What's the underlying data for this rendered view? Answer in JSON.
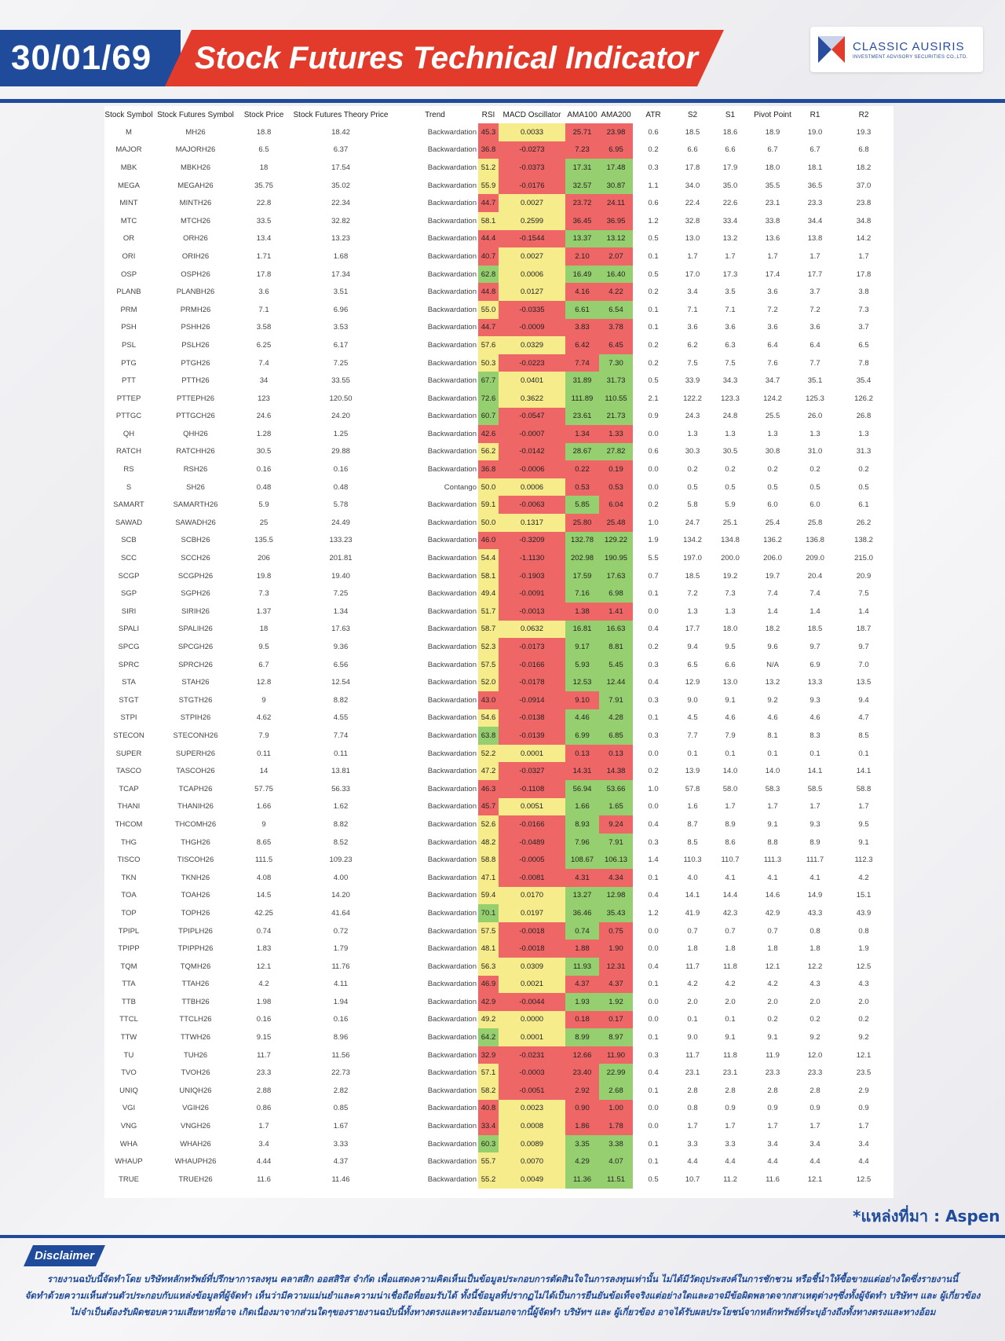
{
  "header": {
    "date": "30/01/69",
    "title": "Stock Futures Technical Indicator",
    "logo_name": "CLASSIC AUSIRIS",
    "logo_sub": "INVESTMENT ADVISORY SECURITIES CO.,LTD."
  },
  "columns": [
    "Stock Symbol",
    "Stock Futures Symbol",
    "Stock Price",
    "Stock Futures Theory Price",
    "Trend",
    "RSI",
    "MACD Oscillator",
    "AMA100",
    "AMA200",
    "ATR",
    "S2",
    "S1",
    "Pivot Point",
    "R1",
    "R2"
  ],
  "colors": {
    "red": "#ee6666",
    "yellow": "#f7ec8c",
    "green": "#96cf6f",
    "orange": "#f7b26a",
    "brand_blue": "#1f4b9a",
    "brand_red": "#e23b2c"
  },
  "rows": [
    [
      "M",
      "MH26",
      "18.8",
      "18.42",
      "Backwardation",
      "45.3",
      "0.0033",
      "25.71",
      "23.98",
      "0.6",
      "18.5",
      "18.6",
      "18.9",
      "19.0",
      "19.3"
    ],
    [
      "MAJOR",
      "MAJORH26",
      "6.5",
      "6.37",
      "Backwardation",
      "36.8",
      "-0.0273",
      "7.23",
      "6.95",
      "0.2",
      "6.6",
      "6.6",
      "6.7",
      "6.7",
      "6.8"
    ],
    [
      "MBK",
      "MBKH26",
      "18",
      "17.54",
      "Backwardation",
      "51.2",
      "-0.0373",
      "17.31",
      "17.48",
      "0.3",
      "17.8",
      "17.9",
      "18.0",
      "18.1",
      "18.2"
    ],
    [
      "MEGA",
      "MEGAH26",
      "35.75",
      "35.02",
      "Backwardation",
      "55.9",
      "-0.0176",
      "32.57",
      "30.87",
      "1.1",
      "34.0",
      "35.0",
      "35.5",
      "36.5",
      "37.0"
    ],
    [
      "MINT",
      "MINTH26",
      "22.8",
      "22.34",
      "Backwardation",
      "44.7",
      "0.0027",
      "23.72",
      "24.11",
      "0.6",
      "22.4",
      "22.6",
      "23.1",
      "23.3",
      "23.8"
    ],
    [
      "MTC",
      "MTCH26",
      "33.5",
      "32.82",
      "Backwardation",
      "58.1",
      "0.2599",
      "36.45",
      "36.95",
      "1.2",
      "32.8",
      "33.4",
      "33.8",
      "34.4",
      "34.8"
    ],
    [
      "OR",
      "ORH26",
      "13.4",
      "13.23",
      "Backwardation",
      "44.4",
      "-0.1544",
      "13.37",
      "13.12",
      "0.5",
      "13.0",
      "13.2",
      "13.6",
      "13.8",
      "14.2"
    ],
    [
      "ORI",
      "ORIH26",
      "1.71",
      "1.68",
      "Backwardation",
      "40.7",
      "0.0027",
      "2.10",
      "2.07",
      "0.1",
      "1.7",
      "1.7",
      "1.7",
      "1.7",
      "1.7"
    ],
    [
      "OSP",
      "OSPH26",
      "17.8",
      "17.34",
      "Backwardation",
      "62.8",
      "0.0006",
      "16.49",
      "16.40",
      "0.5",
      "17.0",
      "17.3",
      "17.4",
      "17.7",
      "17.8"
    ],
    [
      "PLANB",
      "PLANBH26",
      "3.6",
      "3.51",
      "Backwardation",
      "44.8",
      "0.0127",
      "4.16",
      "4.22",
      "0.2",
      "3.4",
      "3.5",
      "3.6",
      "3.7",
      "3.8"
    ],
    [
      "PRM",
      "PRMH26",
      "7.1",
      "6.96",
      "Backwardation",
      "55.0",
      "-0.0335",
      "6.61",
      "6.54",
      "0.1",
      "7.1",
      "7.1",
      "7.2",
      "7.2",
      "7.3"
    ],
    [
      "PSH",
      "PSHH26",
      "3.58",
      "3.53",
      "Backwardation",
      "44.7",
      "-0.0009",
      "3.83",
      "3.78",
      "0.1",
      "3.6",
      "3.6",
      "3.6",
      "3.6",
      "3.7"
    ],
    [
      "PSL",
      "PSLH26",
      "6.25",
      "6.17",
      "Backwardation",
      "57.6",
      "0.0329",
      "6.42",
      "6.45",
      "0.2",
      "6.2",
      "6.3",
      "6.4",
      "6.4",
      "6.5"
    ],
    [
      "PTG",
      "PTGH26",
      "7.4",
      "7.25",
      "Backwardation",
      "50.3",
      "-0.0223",
      "7.74",
      "7.30",
      "0.2",
      "7.5",
      "7.5",
      "7.6",
      "7.7",
      "7.8"
    ],
    [
      "PTT",
      "PTTH26",
      "34",
      "33.55",
      "Backwardation",
      "67.7",
      "0.0401",
      "31.89",
      "31.73",
      "0.5",
      "33.9",
      "34.3",
      "34.7",
      "35.1",
      "35.4"
    ],
    [
      "PTTEP",
      "PTTEPH26",
      "123",
      "120.50",
      "Backwardation",
      "72.6",
      "0.3622",
      "111.89",
      "110.55",
      "2.1",
      "122.2",
      "123.3",
      "124.2",
      "125.3",
      "126.2"
    ],
    [
      "PTTGC",
      "PTTGCH26",
      "24.6",
      "24.20",
      "Backwardation",
      "60.7",
      "-0.0547",
      "23.61",
      "21.73",
      "0.9",
      "24.3",
      "24.8",
      "25.5",
      "26.0",
      "26.8"
    ],
    [
      "QH",
      "QHH26",
      "1.28",
      "1.25",
      "Backwardation",
      "42.6",
      "-0.0007",
      "1.34",
      "1.33",
      "0.0",
      "1.3",
      "1.3",
      "1.3",
      "1.3",
      "1.3"
    ],
    [
      "RATCH",
      "RATCHH26",
      "30.5",
      "29.88",
      "Backwardation",
      "56.2",
      "-0.0142",
      "28.67",
      "27.82",
      "0.6",
      "30.3",
      "30.5",
      "30.8",
      "31.0",
      "31.3"
    ],
    [
      "RS",
      "RSH26",
      "0.16",
      "0.16",
      "Backwardation",
      "36.8",
      "-0.0006",
      "0.22",
      "0.19",
      "0.0",
      "0.2",
      "0.2",
      "0.2",
      "0.2",
      "0.2"
    ],
    [
      "S",
      "SH26",
      "0.48",
      "0.48",
      "Contango",
      "50.0",
      "0.0006",
      "0.53",
      "0.53",
      "0.0",
      "0.5",
      "0.5",
      "0.5",
      "0.5",
      "0.5"
    ],
    [
      "SAMART",
      "SAMARTH26",
      "5.9",
      "5.78",
      "Backwardation",
      "59.1",
      "-0.0063",
      "5.85",
      "6.04",
      "0.2",
      "5.8",
      "5.9",
      "6.0",
      "6.0",
      "6.1"
    ],
    [
      "SAWAD",
      "SAWADH26",
      "25",
      "24.49",
      "Backwardation",
      "50.0",
      "0.1317",
      "25.80",
      "25.48",
      "1.0",
      "24.7",
      "25.1",
      "25.4",
      "25.8",
      "26.2"
    ],
    [
      "SCB",
      "SCBH26",
      "135.5",
      "133.23",
      "Backwardation",
      "46.0",
      "-0.3209",
      "132.78",
      "129.22",
      "1.9",
      "134.2",
      "134.8",
      "136.2",
      "136.8",
      "138.2"
    ],
    [
      "SCC",
      "SCCH26",
      "206",
      "201.81",
      "Backwardation",
      "54.4",
      "-1.1130",
      "202.98",
      "190.95",
      "5.5",
      "197.0",
      "200.0",
      "206.0",
      "209.0",
      "215.0"
    ],
    [
      "SCGP",
      "SCGPH26",
      "19.8",
      "19.40",
      "Backwardation",
      "58.1",
      "-0.1903",
      "17.59",
      "17.63",
      "0.7",
      "18.5",
      "19.2",
      "19.7",
      "20.4",
      "20.9"
    ],
    [
      "SGP",
      "SGPH26",
      "7.3",
      "7.25",
      "Backwardation",
      "49.4",
      "-0.0091",
      "7.16",
      "6.98",
      "0.1",
      "7.2",
      "7.3",
      "7.4",
      "7.4",
      "7.5"
    ],
    [
      "SIRI",
      "SIRIH26",
      "1.37",
      "1.34",
      "Backwardation",
      "51.7",
      "-0.0013",
      "1.38",
      "1.41",
      "0.0",
      "1.3",
      "1.3",
      "1.4",
      "1.4",
      "1.4"
    ],
    [
      "SPALI",
      "SPALIH26",
      "18",
      "17.63",
      "Backwardation",
      "58.7",
      "0.0632",
      "16.81",
      "16.63",
      "0.4",
      "17.7",
      "18.0",
      "18.2",
      "18.5",
      "18.7"
    ],
    [
      "SPCG",
      "SPCGH26",
      "9.5",
      "9.36",
      "Backwardation",
      "52.3",
      "-0.0173",
      "9.17",
      "8.81",
      "0.2",
      "9.4",
      "9.5",
      "9.6",
      "9.7",
      "9.7"
    ],
    [
      "SPRC",
      "SPRCH26",
      "6.7",
      "6.56",
      "Backwardation",
      "57.5",
      "-0.0166",
      "5.93",
      "5.45",
      "0.3",
      "6.5",
      "6.6",
      "N/A",
      "6.9",
      "7.0"
    ],
    [
      "STA",
      "STAH26",
      "12.8",
      "12.54",
      "Backwardation",
      "52.0",
      "-0.0178",
      "12.53",
      "12.44",
      "0.4",
      "12.9",
      "13.0",
      "13.2",
      "13.3",
      "13.5"
    ],
    [
      "STGT",
      "STGTH26",
      "9",
      "8.82",
      "Backwardation",
      "43.0",
      "-0.0914",
      "9.10",
      "7.91",
      "0.3",
      "9.0",
      "9.1",
      "9.2",
      "9.3",
      "9.4"
    ],
    [
      "STPI",
      "STPIH26",
      "4.62",
      "4.55",
      "Backwardation",
      "54.6",
      "-0.0138",
      "4.46",
      "4.28",
      "0.1",
      "4.5",
      "4.6",
      "4.6",
      "4.6",
      "4.7"
    ],
    [
      "STECON",
      "STECONH26",
      "7.9",
      "7.74",
      "Backwardation",
      "63.8",
      "-0.0139",
      "6.99",
      "6.85",
      "0.3",
      "7.7",
      "7.9",
      "8.1",
      "8.3",
      "8.5"
    ],
    [
      "SUPER",
      "SUPERH26",
      "0.11",
      "0.11",
      "Backwardation",
      "52.2",
      "0.0001",
      "0.13",
      "0.13",
      "0.0",
      "0.1",
      "0.1",
      "0.1",
      "0.1",
      "0.1"
    ],
    [
      "TASCO",
      "TASCOH26",
      "14",
      "13.81",
      "Backwardation",
      "47.2",
      "-0.0327",
      "14.31",
      "14.38",
      "0.2",
      "13.9",
      "14.0",
      "14.0",
      "14.1",
      "14.1"
    ],
    [
      "TCAP",
      "TCAPH26",
      "57.75",
      "56.33",
      "Backwardation",
      "46.3",
      "-0.1108",
      "56.94",
      "53.66",
      "1.0",
      "57.8",
      "58.0",
      "58.3",
      "58.5",
      "58.8"
    ],
    [
      "THANI",
      "THANIH26",
      "1.66",
      "1.62",
      "Backwardation",
      "45.7",
      "0.0051",
      "1.66",
      "1.65",
      "0.0",
      "1.6",
      "1.7",
      "1.7",
      "1.7",
      "1.7"
    ],
    [
      "THCOM",
      "THCOMH26",
      "9",
      "8.82",
      "Backwardation",
      "52.6",
      "-0.0166",
      "8.93",
      "9.24",
      "0.4",
      "8.7",
      "8.9",
      "9.1",
      "9.3",
      "9.5"
    ],
    [
      "THG",
      "THGH26",
      "8.65",
      "8.52",
      "Backwardation",
      "48.2",
      "-0.0489",
      "7.96",
      "7.91",
      "0.3",
      "8.5",
      "8.6",
      "8.8",
      "8.9",
      "9.1"
    ],
    [
      "TISCO",
      "TISCOH26",
      "111.5",
      "109.23",
      "Backwardation",
      "58.8",
      "-0.0005",
      "108.67",
      "106.13",
      "1.4",
      "110.3",
      "110.7",
      "111.3",
      "111.7",
      "112.3"
    ],
    [
      "TKN",
      "TKNH26",
      "4.08",
      "4.00",
      "Backwardation",
      "47.1",
      "-0.0081",
      "4.31",
      "4.34",
      "0.1",
      "4.0",
      "4.1",
      "4.1",
      "4.1",
      "4.2"
    ],
    [
      "TOA",
      "TOAH26",
      "14.5",
      "14.20",
      "Backwardation",
      "59.4",
      "0.0170",
      "13.27",
      "12.98",
      "0.4",
      "14.1",
      "14.4",
      "14.6",
      "14.9",
      "15.1"
    ],
    [
      "TOP",
      "TOPH26",
      "42.25",
      "41.64",
      "Backwardation",
      "70.1",
      "0.0197",
      "36.46",
      "35.43",
      "1.2",
      "41.9",
      "42.3",
      "42.9",
      "43.3",
      "43.9"
    ],
    [
      "TPIPL",
      "TPIPLH26",
      "0.74",
      "0.72",
      "Backwardation",
      "57.5",
      "-0.0018",
      "0.74",
      "0.75",
      "0.0",
      "0.7",
      "0.7",
      "0.7",
      "0.8",
      "0.8"
    ],
    [
      "TPIPP",
      "TPIPPH26",
      "1.83",
      "1.79",
      "Backwardation",
      "48.1",
      "-0.0018",
      "1.88",
      "1.90",
      "0.0",
      "1.8",
      "1.8",
      "1.8",
      "1.8",
      "1.9"
    ],
    [
      "TQM",
      "TQMH26",
      "12.1",
      "11.76",
      "Backwardation",
      "56.3",
      "0.0309",
      "11.93",
      "12.31",
      "0.4",
      "11.7",
      "11.8",
      "12.1",
      "12.2",
      "12.5"
    ],
    [
      "TTA",
      "TTAH26",
      "4.2",
      "4.11",
      "Backwardation",
      "46.9",
      "0.0021",
      "4.37",
      "4.37",
      "0.1",
      "4.2",
      "4.2",
      "4.2",
      "4.3",
      "4.3"
    ],
    [
      "TTB",
      "TTBH26",
      "1.98",
      "1.94",
      "Backwardation",
      "42.9",
      "-0.0044",
      "1.93",
      "1.92",
      "0.0",
      "2.0",
      "2.0",
      "2.0",
      "2.0",
      "2.0"
    ],
    [
      "TTCL",
      "TTCLH26",
      "0.16",
      "0.16",
      "Backwardation",
      "49.2",
      "0.0000",
      "0.18",
      "0.17",
      "0.0",
      "0.1",
      "0.1",
      "0.2",
      "0.2",
      "0.2"
    ],
    [
      "TTW",
      "TTWH26",
      "9.15",
      "8.96",
      "Backwardation",
      "64.2",
      "0.0001",
      "8.99",
      "8.97",
      "0.1",
      "9.0",
      "9.1",
      "9.1",
      "9.2",
      "9.2"
    ],
    [
      "TU",
      "TUH26",
      "11.7",
      "11.56",
      "Backwardation",
      "32.9",
      "-0.0231",
      "12.66",
      "11.90",
      "0.3",
      "11.7",
      "11.8",
      "11.9",
      "12.0",
      "12.1"
    ],
    [
      "TVO",
      "TVOH26",
      "23.3",
      "22.73",
      "Backwardation",
      "57.1",
      "-0.0003",
      "23.40",
      "22.99",
      "0.4",
      "23.1",
      "23.1",
      "23.3",
      "23.3",
      "23.5"
    ],
    [
      "UNIQ",
      "UNIQH26",
      "2.88",
      "2.82",
      "Backwardation",
      "58.2",
      "-0.0051",
      "2.92",
      "2.68",
      "0.1",
      "2.8",
      "2.8",
      "2.8",
      "2.8",
      "2.9"
    ],
    [
      "VGI",
      "VGIH26",
      "0.86",
      "0.85",
      "Backwardation",
      "40.8",
      "0.0023",
      "0.90",
      "1.00",
      "0.0",
      "0.8",
      "0.9",
      "0.9",
      "0.9",
      "0.9"
    ],
    [
      "VNG",
      "VNGH26",
      "1.7",
      "1.67",
      "Backwardation",
      "33.4",
      "0.0008",
      "1.86",
      "1.78",
      "0.0",
      "1.7",
      "1.7",
      "1.7",
      "1.7",
      "1.7"
    ],
    [
      "WHA",
      "WHAH26",
      "3.4",
      "3.33",
      "Backwardation",
      "60.3",
      "0.0089",
      "3.35",
      "3.38",
      "0.1",
      "3.3",
      "3.3",
      "3.4",
      "3.4",
      "3.4"
    ],
    [
      "WHAUP",
      "WHAUPH26",
      "4.44",
      "4.37",
      "Backwardation",
      "55.7",
      "0.0070",
      "4.29",
      "4.07",
      "0.1",
      "4.4",
      "4.4",
      "4.4",
      "4.4",
      "4.4"
    ],
    [
      "TRUE",
      "TRUEH26",
      "11.6",
      "11.46",
      "Backwardation",
      "55.2",
      "0.0049",
      "11.36",
      "11.51",
      "0.5",
      "10.7",
      "11.2",
      "11.6",
      "12.1",
      "12.5"
    ]
  ],
  "source": "*แหล่งที่มา : Aspen",
  "disclaimer": {
    "label": "Disclaimer",
    "lines": [
      "รายงานฉบับนี้จัดทำโดย บริษัทหลักทรัพย์ที่ปรึกษาการลงทุน คลาสสิก ออสสิริส จำกัด เพื่อแสดงความคิดเห็นเป็นข้อมูลประกอบการตัดสินใจในการลงทุนเท่านั้น ไม่ได้มีวัตถุประสงค์ในการชักชวน หรือชี้นำให้ซื้อขายแต่อย่างใดซึ่งรายงานนี้",
      "จัดทำด้วยความเห็นส่วนตัวประกอบกับแหล่งข้อมูลที่ผู้จัดทำ เห็นว่ามีความแม่นยำและความน่าเชื่อถือที่ยอมรับได้ ทั้งนี้ข้อมูลที่ปรากฏไม่ได้เป็นการยืนยันข้อเท็จจริงแต่อย่างใดและอาจมีข้อผิดพลาดจากสาเหตุต่างๆซึ่งทั้งผู้จัดทำ บริษัทฯ และ ผู้เกี่ยวข้อง",
      "ไม่จำเป็นต้องรับผิดชอบความเสียหายที่อาจ เกิดเนื่องมาจากส่วนใดๆของรายงานฉบับนี้ทั้งทางตรงและทางอ้อมนอกจากนี้ผู้จัดทำ บริษัทฯ และ ผู้เกี่ยวข้อง อาจได้รับผลประโยชน์จากหลักทรัพย์ที่ระบุอ้างถึงทั้งทางตรงและทางอ้อม"
    ]
  }
}
